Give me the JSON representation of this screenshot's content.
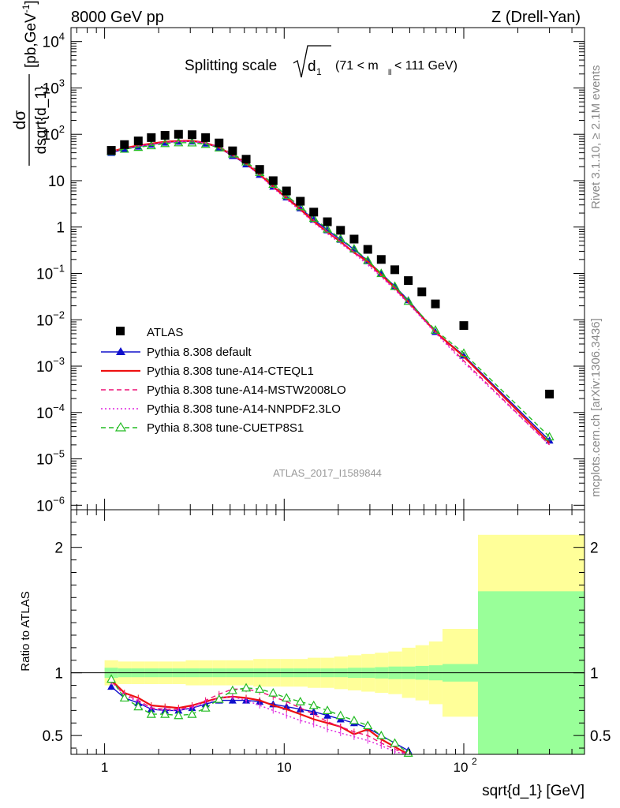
{
  "header": {
    "left": "8000 GeV pp",
    "right": "Z (Drell-Yan)"
  },
  "side_labels": {
    "rivet": "Rivet 3.1.10, ≥ 2.1M events",
    "mcplots": "mcplots.cern.ch [arXiv:1306.3436]"
  },
  "chart_data": {
    "type": "scatter",
    "title": "Splitting scale",
    "title_symbol": "d",
    "title_symbol_sub": "1",
    "title_range": "(71 < m",
    "title_range_sub": "ll",
    "title_range_tail": " < 111 GeV)",
    "ylabel_num": "dσ",
    "ylabel_den": "dsqrt{d_1}",
    "ylabel_unit": "[pb,GeV",
    "ylabel_unit_sup": "-1",
    "ylabel_unit_close": "]",
    "xlabel": "sqrt{d_1} [GeV]",
    "ratio_ylabel": "Ratio to ATLAS",
    "watermark": "ATLAS_2017_I1589844",
    "x_scale": "log",
    "xlim": [
      0.65,
      470
    ],
    "ylim_main": [
      8e-07,
      20000
    ],
    "ylim_ratio": [
      0.35,
      2.3
    ],
    "x_ticks": [
      1,
      10,
      100
    ],
    "x_tick_labels": [
      "1",
      "10",
      "10",
      "2"
    ],
    "main_y_ticks": [
      {
        "v": 10000,
        "base": "10",
        "sup": "4"
      },
      {
        "v": 1000,
        "base": "10",
        "sup": "3"
      },
      {
        "v": 100,
        "base": "10",
        "sup": "2"
      },
      {
        "v": 10,
        "base": "10",
        "sup": ""
      },
      {
        "v": 1,
        "base": "1",
        "sup": ""
      },
      {
        "v": 0.1,
        "base": "10",
        "sup": "−1"
      },
      {
        "v": 0.01,
        "base": "10",
        "sup": "−2"
      },
      {
        "v": 0.001,
        "base": "10",
        "sup": "−3"
      },
      {
        "v": 0.0001,
        "base": "10",
        "sup": "−4"
      },
      {
        "v": 1e-05,
        "base": "10",
        "sup": "−5"
      },
      {
        "v": 1e-06,
        "base": "10",
        "sup": "−6"
      }
    ],
    "ratio_y_ticks": [
      {
        "v": 0.5,
        "label": "0.5"
      },
      {
        "v": 1,
        "label": "1"
      },
      {
        "v": 2,
        "label": "2"
      }
    ],
    "x": [
      1.09,
      1.29,
      1.54,
      1.82,
      2.17,
      2.58,
      3.07,
      3.65,
      4.34,
      5.16,
      6.14,
      7.3,
      8.68,
      10.3,
      12.3,
      14.6,
      17.4,
      20.6,
      24.5,
      29.2,
      34.7,
      41.3,
      49.1,
      58.4,
      69.5,
      100,
      300
    ],
    "atlas": {
      "name": "ATLAS",
      "values": [
        45,
        60,
        72,
        85,
        95,
        100,
        98,
        85,
        65,
        44,
        29,
        17.5,
        10,
        6,
        3.6,
        2.1,
        1.3,
        0.85,
        0.55,
        0.33,
        0.2,
        0.12,
        0.07,
        0.04,
        0.022,
        0.0075,
        0.00025
      ],
      "band_x_edges": [
        1,
        1.19,
        1.41,
        1.68,
        2,
        2.38,
        2.83,
        3.36,
        4,
        4.76,
        5.66,
        6.73,
        8,
        9.51,
        11.3,
        13.5,
        16,
        19,
        22.6,
        26.9,
        32,
        38,
        45.3,
        53.8,
        64,
        76.1,
        120,
        470
      ],
      "band_inner": [
        0.04,
        0.035,
        0.035,
        0.035,
        0.035,
        0.035,
        0.035,
        0.035,
        0.035,
        0.035,
        0.035,
        0.035,
        0.035,
        0.035,
        0.035,
        0.035,
        0.035,
        0.035,
        0.04,
        0.04,
        0.045,
        0.05,
        0.05,
        0.055,
        0.06,
        0.07,
        0.65
      ],
      "band_outer": [
        0.1,
        0.09,
        0.09,
        0.09,
        0.09,
        0.09,
        0.1,
        0.1,
        0.1,
        0.1,
        0.1,
        0.11,
        0.11,
        0.11,
        0.11,
        0.12,
        0.12,
        0.13,
        0.14,
        0.15,
        0.16,
        0.17,
        0.2,
        0.22,
        0.25,
        0.35,
        1.1
      ]
    },
    "series": [
      {
        "name": "Pythia 8.308 default",
        "color": "#1010cc",
        "style": "solid",
        "marker": "triangle-filled",
        "ratio": [
          0.89,
          0.8,
          0.76,
          0.71,
          0.7,
          0.7,
          0.72,
          0.75,
          0.78,
          0.78,
          0.78,
          0.77,
          0.75,
          0.73,
          0.71,
          0.69,
          0.66,
          0.63,
          0.6,
          0.56,
          0.5,
          0.44,
          0.38
        ],
        "end_values": [
          0.0055,
          0.0017,
          2.5e-05
        ]
      },
      {
        "name": "Pythia 8.308 tune-A14-CTEQL1",
        "color": "#ee1111",
        "style": "solid",
        "marker": "none",
        "ratio": [
          0.94,
          0.84,
          0.8,
          0.74,
          0.73,
          0.72,
          0.74,
          0.77,
          0.8,
          0.81,
          0.8,
          0.78,
          0.74,
          0.71,
          0.67,
          0.63,
          0.6,
          0.57,
          0.51,
          0.55,
          0.47,
          0.41,
          0.35
        ],
        "end_values": [
          0.0055,
          0.0016,
          2.2e-05
        ]
      },
      {
        "name": "Pythia 8.308 tune-A14-MSTW2008LO",
        "color": "#ee1177",
        "style": "dashed",
        "marker": "none",
        "ratio": [
          0.93,
          0.83,
          0.78,
          0.72,
          0.71,
          0.71,
          0.73,
          0.78,
          0.83,
          0.87,
          0.87,
          0.85,
          0.81,
          0.77,
          0.72,
          0.67,
          0.61,
          0.57,
          0.53,
          0.5,
          0.44,
          0.39,
          0.33
        ],
        "end_values": [
          0.0055,
          0.0013,
          2e-05
        ]
      },
      {
        "name": "Pythia 8.308 tune-A14-NNPDF2.3LO",
        "color": "#dd22dd",
        "style": "dotted",
        "marker": "none",
        "ratio": [
          0.93,
          0.82,
          0.77,
          0.71,
          0.7,
          0.7,
          0.72,
          0.76,
          0.8,
          0.81,
          0.78,
          0.74,
          0.7,
          0.66,
          0.62,
          0.59,
          0.55,
          0.52,
          0.49,
          0.46,
          0.42,
          0.37,
          0.32
        ],
        "end_values": [
          0.0052,
          0.0012,
          2e-05
        ]
      },
      {
        "name": "Pythia 8.308 tune-CUETP8S1",
        "color": "#22bb22",
        "style": "dashed",
        "marker": "triangle-open",
        "ratio": [
          0.95,
          0.8,
          0.73,
          0.67,
          0.67,
          0.66,
          0.67,
          0.72,
          0.79,
          0.86,
          0.88,
          0.87,
          0.84,
          0.8,
          0.77,
          0.74,
          0.7,
          0.66,
          0.62,
          0.58,
          0.5,
          0.44,
          0.36
        ],
        "end_values": [
          0.006,
          0.0019,
          3e-05
        ]
      }
    ]
  }
}
